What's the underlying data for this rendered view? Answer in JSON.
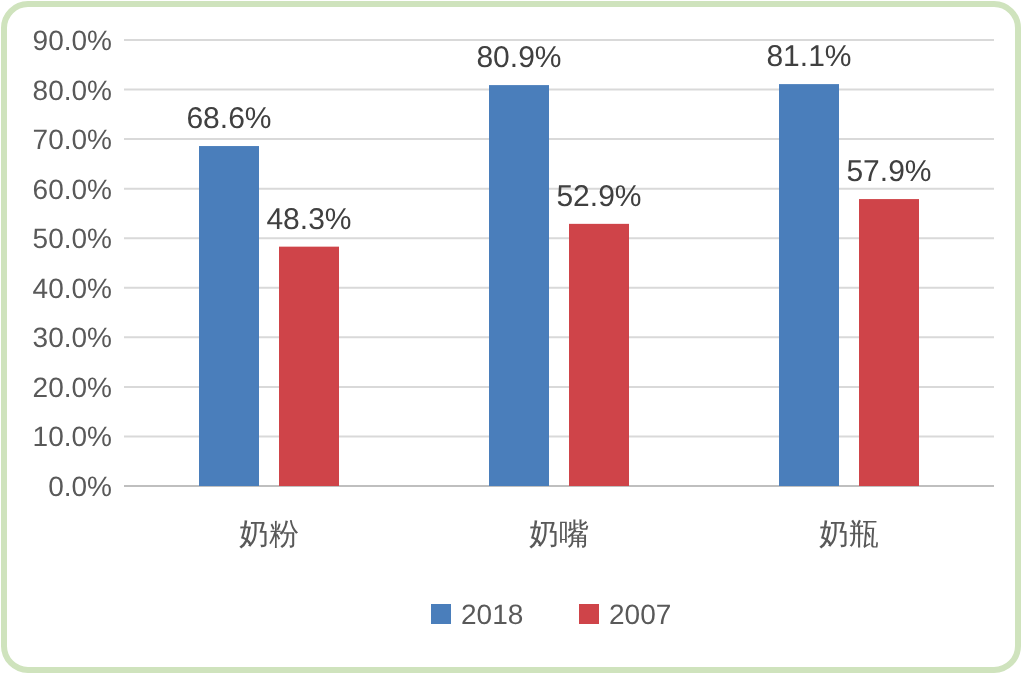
{
  "chart_data": {
    "type": "bar",
    "categories": [
      "奶粉",
      "奶嘴",
      "奶瓶"
    ],
    "series": [
      {
        "name": "2018",
        "color": "#4a7ebb",
        "values": [
          68.6,
          80.9,
          81.1
        ],
        "value_labels": [
          "68.6%",
          "80.9%",
          "81.1%"
        ]
      },
      {
        "name": "2007",
        "color": "#cf4449",
        "values": [
          48.3,
          52.9,
          57.9
        ],
        "value_labels": [
          "48.3%",
          "52.9%",
          "57.9%"
        ]
      }
    ],
    "ylim": [
      0,
      90
    ],
    "yticks": [
      {
        "value": 0,
        "label": "0.0%"
      },
      {
        "value": 10,
        "label": "10.0%"
      },
      {
        "value": 20,
        "label": "20.0%"
      },
      {
        "value": 30,
        "label": "30.0%"
      },
      {
        "value": 40,
        "label": "40.0%"
      },
      {
        "value": 50,
        "label": "50.0%"
      },
      {
        "value": 60,
        "label": "60.0%"
      },
      {
        "value": 70,
        "label": "70.0%"
      },
      {
        "value": 80,
        "label": "80.0%"
      },
      {
        "value": 90,
        "label": "90.0%"
      }
    ],
    "grid": "y",
    "legend": "bottom"
  }
}
